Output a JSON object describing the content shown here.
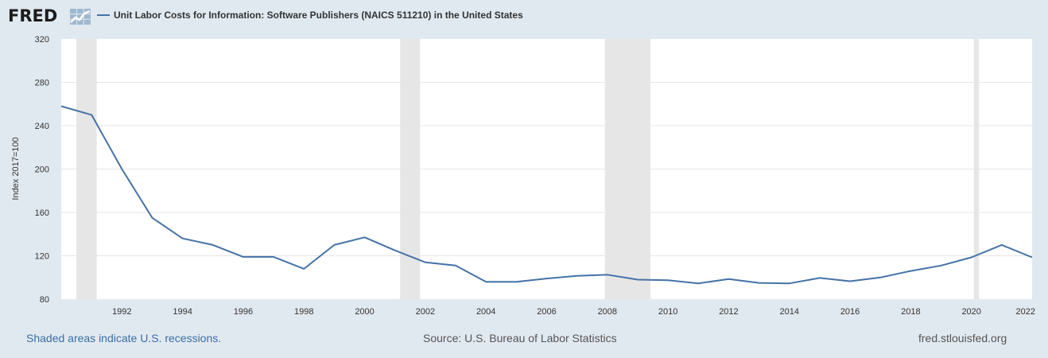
{
  "brand": {
    "logo_text": "FRED",
    "logo_icon": "fred-chart-icon"
  },
  "legend": {
    "label": "Unit Labor Costs for Information: Software Publishers (NAICS 511210) in the United States",
    "color": "#4572a7"
  },
  "footer": {
    "recessions_note": "Shaded areas indicate U.S. recessions.",
    "source": "Source: U.S. Bureau of Labor Statistics",
    "site": "fred.stlouisfed.org"
  },
  "colors": {
    "background": "#e1e9f0",
    "plot": "#ffffff",
    "recession": "#e6e6e6",
    "line": "#4572a7"
  },
  "chart_data": {
    "type": "line",
    "title": "",
    "xlabel": "",
    "ylabel": "Index 2017=100",
    "xlim": [
      1990,
      2022
    ],
    "ylim": [
      80,
      320
    ],
    "yticks": [
      80,
      120,
      160,
      200,
      240,
      280,
      320
    ],
    "xticks": [
      1992,
      1994,
      1996,
      1998,
      2000,
      2002,
      2004,
      2006,
      2008,
      2010,
      2012,
      2014,
      2016,
      2018,
      2020,
      2022
    ],
    "grid": true,
    "recessions": [
      [
        1990.5,
        1991.17
      ],
      [
        2001.17,
        2001.83
      ],
      [
        2007.92,
        2009.42
      ],
      [
        2020.08,
        2020.25
      ]
    ],
    "series": [
      {
        "name": "Unit Labor Costs for Information: Software Publishers (NAICS 511210) in the United States",
        "x": [
          1990,
          1991,
          1992,
          1993,
          1994,
          1995,
          1996,
          1997,
          1998,
          1999,
          2000,
          2001,
          2002,
          2003,
          2004,
          2005,
          2006,
          2007,
          2008,
          2009,
          2010,
          2011,
          2012,
          2013,
          2014,
          2015,
          2016,
          2017,
          2018,
          2019,
          2020,
          2021,
          2022
        ],
        "y": [
          258,
          250,
          200,
          155,
          136,
          130,
          119,
          119,
          108,
          130,
          137,
          125,
          114,
          111,
          96,
          96,
          99,
          101.5,
          102.5,
          98,
          97.5,
          94.5,
          98.5,
          95,
          94.5,
          99.5,
          96.5,
          100,
          106,
          111,
          118.5,
          130,
          118.5
        ]
      }
    ]
  }
}
